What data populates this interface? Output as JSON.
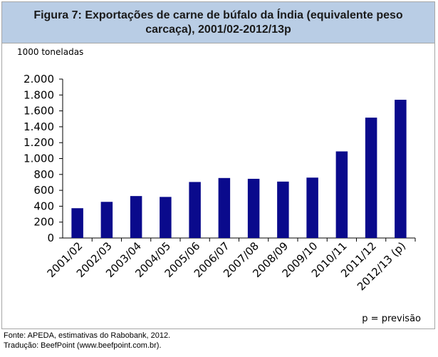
{
  "figure": {
    "title": "Figura 7: Exportações de carne de búfalo da Índia (equivalente peso carcaça), 2001/02-2012/13p",
    "unit_label": "1000 toneladas",
    "note": "p = previsão"
  },
  "source": {
    "line1": "Fonte: APEDA, estimativas do Rabobank, 2012.",
    "line2": "Tradução: BeefPoint (www.beefpoint.com.br)."
  },
  "colors": {
    "bar": "#0a0a8c",
    "title_bg": "#b9cde5"
  },
  "chart_data": {
    "type": "bar",
    "title": "Figura 7: Exportações de carne de búfalo da Índia (equivalente peso carcaça), 2001/02-2012/13p",
    "ylabel": "1000 toneladas",
    "categories": [
      "2001/02",
      "2002/03",
      "2003/04",
      "2004/05",
      "2005/06",
      "2006/07",
      "2007/08",
      "2008/09",
      "2009/10",
      "2010/11",
      "2011/12",
      "2012/13 (p)"
    ],
    "values": [
      375,
      455,
      528,
      517,
      705,
      755,
      745,
      710,
      760,
      1090,
      1515,
      1740
    ],
    "ylim": [
      0,
      2000
    ],
    "yticks": [
      0,
      200,
      400,
      600,
      800,
      1000,
      1200,
      1400,
      1600,
      1800,
      2000
    ],
    "ytick_labels": [
      "0",
      "200",
      "400",
      "600",
      "800",
      "1.000",
      "1.200",
      "1.400",
      "1.600",
      "1.800",
      "2.000"
    ],
    "grid": false,
    "legend": "none"
  }
}
